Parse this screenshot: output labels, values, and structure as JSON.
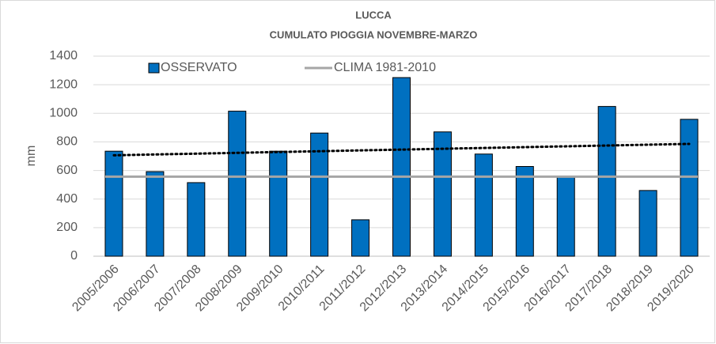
{
  "chart_data": {
    "type": "bar",
    "title": "LUCCA",
    "subtitle": "CUMULATO PIOGGIA NOVEMBRE-MARZO",
    "y_label": "mm",
    "categories": [
      "2005/2006",
      "2006/2007",
      "2007/2008",
      "2008/2009",
      "2009/2010",
      "2010/2011",
      "2011/2012",
      "2012/2013",
      "2013/2014",
      "2014/2015",
      "2015/2016",
      "2016/2017",
      "2017/2018",
      "2018/2019",
      "2019/2020"
    ],
    "series": [
      {
        "name": "OSSERVATO",
        "color": "#0070c0",
        "values": [
          735,
          592,
          515,
          1015,
          735,
          862,
          255,
          1250,
          870,
          715,
          628,
          555,
          1048,
          460,
          958
        ]
      }
    ],
    "reference_line": {
      "name": "CLIMA 1981-2010",
      "color": "#a6a6a6",
      "value": 557
    },
    "trendline": true,
    "ylim": [
      0,
      1400
    ],
    "yticks": [
      0,
      200,
      400,
      600,
      800,
      1000,
      1200,
      1400
    ],
    "grid": true
  }
}
